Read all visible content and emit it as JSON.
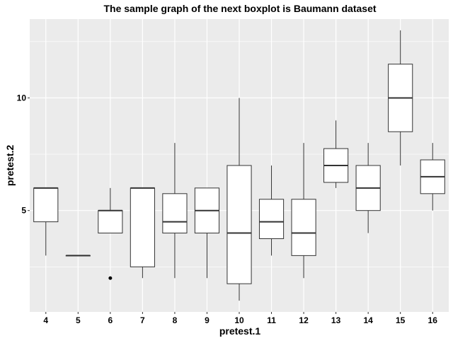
{
  "chart_data": {
    "type": "boxplot",
    "title": "The sample graph of the next boxplot is Baumann dataset",
    "xlabel": "pretest.1",
    "ylabel": "pretest.2",
    "ylim": [
      0.5,
      13.5
    ],
    "yticks": [
      5,
      10
    ],
    "grid": true,
    "categories": [
      "4",
      "5",
      "6",
      "7",
      "8",
      "9",
      "10",
      "11",
      "12",
      "13",
      "14",
      "15",
      "16"
    ],
    "boxes": [
      {
        "x": "4",
        "whisker_low": 3,
        "q1": 4.5,
        "median": 6,
        "q3": 6,
        "whisker_high": 6,
        "outliers": []
      },
      {
        "x": "5",
        "whisker_low": 3,
        "q1": 3,
        "median": 3,
        "q3": 3,
        "whisker_high": 3,
        "outliers": []
      },
      {
        "x": "6",
        "whisker_low": 4,
        "q1": 4,
        "median": 5,
        "q3": 5,
        "whisker_high": 6,
        "outliers": [
          2
        ]
      },
      {
        "x": "7",
        "whisker_low": 2,
        "q1": 2.5,
        "median": 6,
        "q3": 6,
        "whisker_high": 6,
        "outliers": []
      },
      {
        "x": "8",
        "whisker_low": 2,
        "q1": 4,
        "median": 4.5,
        "q3": 5.75,
        "whisker_high": 8,
        "outliers": []
      },
      {
        "x": "9",
        "whisker_low": 2,
        "q1": 4,
        "median": 5,
        "q3": 6,
        "whisker_high": 6,
        "outliers": []
      },
      {
        "x": "10",
        "whisker_low": 1,
        "q1": 1.75,
        "median": 4,
        "q3": 7,
        "whisker_high": 10,
        "outliers": []
      },
      {
        "x": "11",
        "whisker_low": 3,
        "q1": 3.75,
        "median": 4.5,
        "q3": 5.5,
        "whisker_high": 7,
        "outliers": []
      },
      {
        "x": "12",
        "whisker_low": 2,
        "q1": 3,
        "median": 4,
        "q3": 5.5,
        "whisker_high": 8,
        "outliers": []
      },
      {
        "x": "13",
        "whisker_low": 6,
        "q1": 6.25,
        "median": 7,
        "q3": 7.75,
        "whisker_high": 9,
        "outliers": []
      },
      {
        "x": "14",
        "whisker_low": 4,
        "q1": 5,
        "median": 6,
        "q3": 7,
        "whisker_high": 8,
        "outliers": []
      },
      {
        "x": "15",
        "whisker_low": 7,
        "q1": 8.5,
        "median": 10,
        "q3": 11.5,
        "whisker_high": 13,
        "outliers": []
      },
      {
        "x": "16",
        "whisker_low": 5,
        "q1": 5.75,
        "median": 6.5,
        "q3": 7.25,
        "whisker_high": 8,
        "outliers": []
      }
    ],
    "colors": {
      "panel_background": "#ebebeb",
      "grid_major": "#ffffff",
      "box_fill": "#ffffff",
      "box_stroke": "#333333",
      "text": "#000000",
      "tick_text": "#000000"
    }
  }
}
